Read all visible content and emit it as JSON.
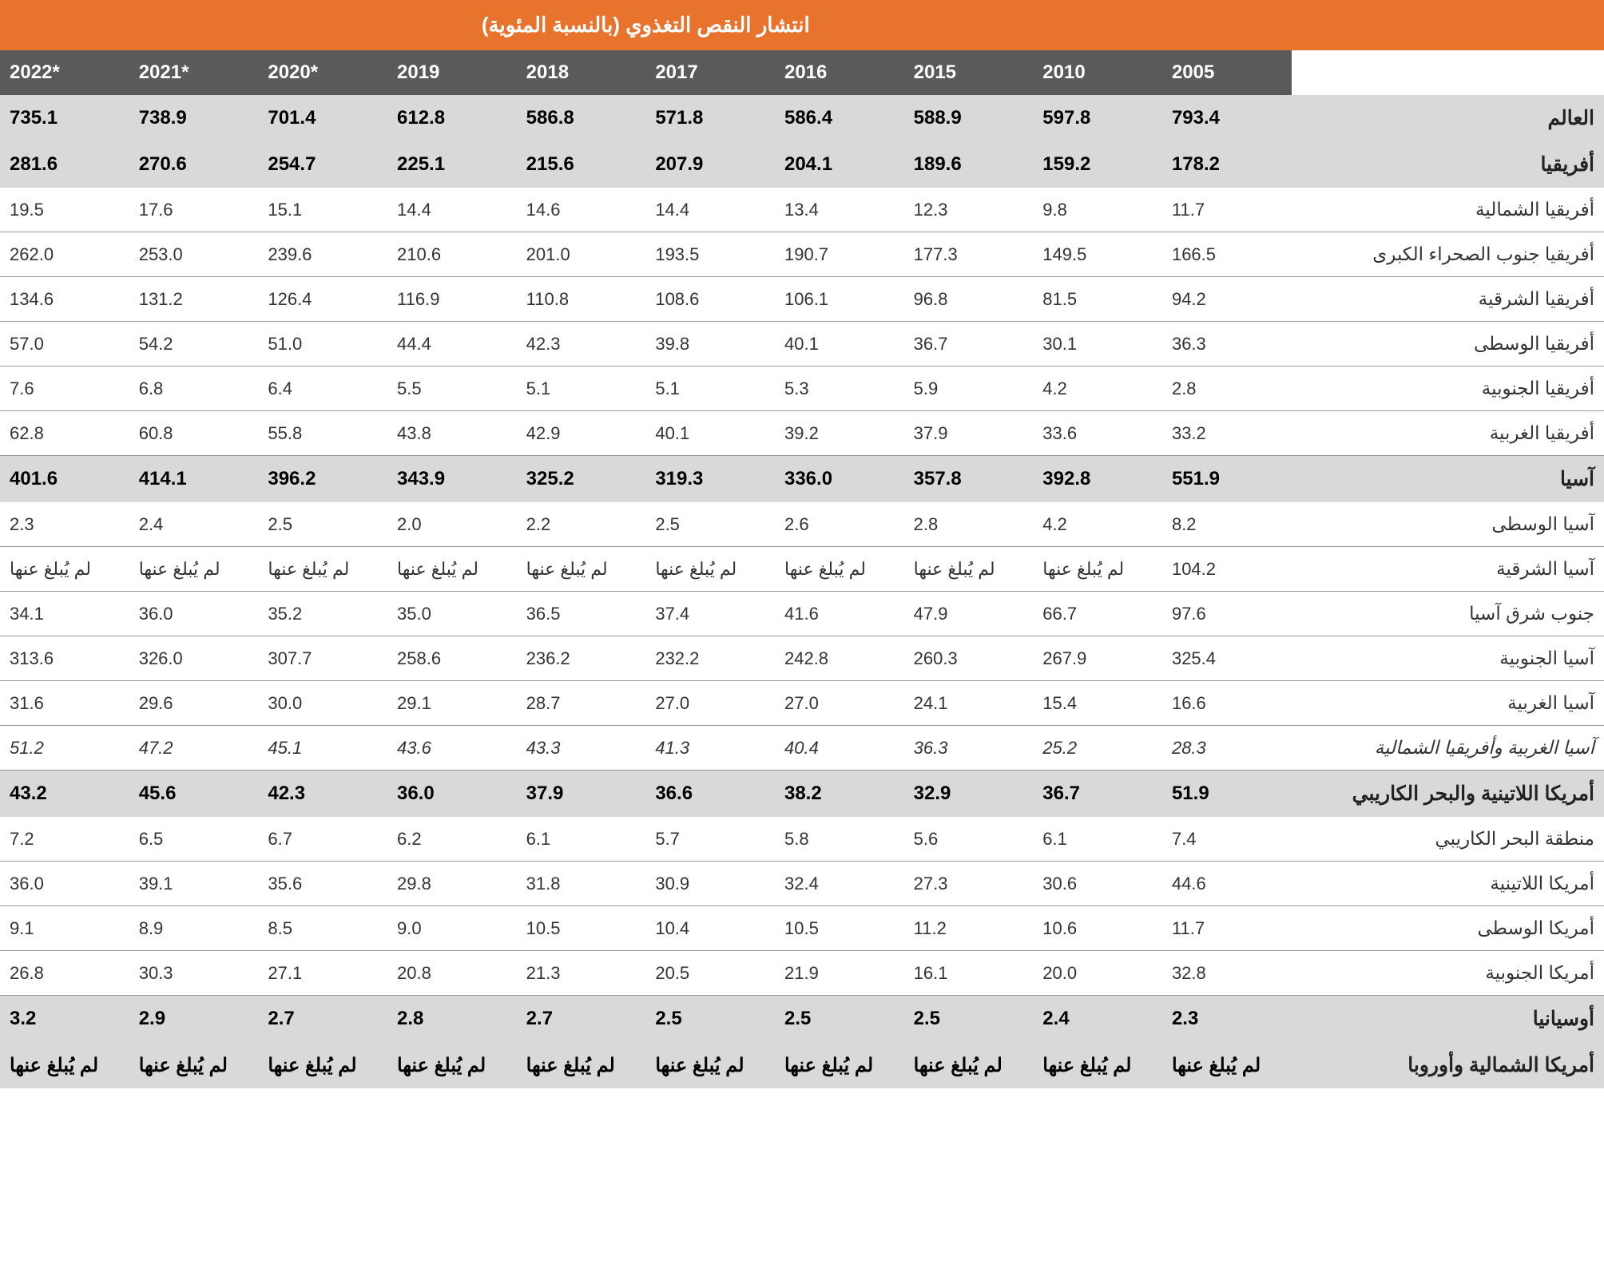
{
  "title": "انتشار النقص التغذوي (بالنسبة المئوية)",
  "columns": [
    "2005",
    "2010",
    "2015",
    "2016",
    "2017",
    "2018",
    "2019",
    "2020*",
    "2021*",
    "2022*"
  ],
  "rows": [
    {
      "label": "العالم",
      "type": "bold",
      "values": [
        "793.4",
        "597.8",
        "588.9",
        "586.4",
        "571.8",
        "586.8",
        "612.8",
        "701.4",
        "738.9",
        "735.1"
      ]
    },
    {
      "label": "أفريقيا",
      "type": "bold",
      "values": [
        "178.2",
        "159.2",
        "189.6",
        "204.1",
        "207.9",
        "215.6",
        "225.1",
        "254.7",
        "270.6",
        "281.6"
      ]
    },
    {
      "label": "أفريقيا الشمالية",
      "type": "normal",
      "values": [
        "11.7",
        "9.8",
        "12.3",
        "13.4",
        "14.4",
        "14.6",
        "14.4",
        "15.1",
        "17.6",
        "19.5"
      ]
    },
    {
      "label": "أفريقيا جنوب الصحراء الكبرى",
      "type": "normal",
      "values": [
        "166.5",
        "149.5",
        "177.3",
        "190.7",
        "193.5",
        "201.0",
        "210.6",
        "239.6",
        "253.0",
        "262.0"
      ]
    },
    {
      "label": "أفريقيا الشرقية",
      "type": "normal",
      "values": [
        "94.2",
        "81.5",
        "96.8",
        "106.1",
        "108.6",
        "110.8",
        "116.9",
        "126.4",
        "131.2",
        "134.6"
      ]
    },
    {
      "label": "أفريقيا الوسطى",
      "type": "normal",
      "values": [
        "36.3",
        "30.1",
        "36.7",
        "40.1",
        "39.8",
        "42.3",
        "44.4",
        "51.0",
        "54.2",
        "57.0"
      ]
    },
    {
      "label": "أفريقيا الجنوبية",
      "type": "normal",
      "values": [
        "2.8",
        "4.2",
        "5.9",
        "5.3",
        "5.1",
        "5.1",
        "5.5",
        "6.4",
        "6.8",
        "7.6"
      ]
    },
    {
      "label": "أفريقيا الغربية",
      "type": "normal",
      "values": [
        "33.2",
        "33.6",
        "37.9",
        "39.2",
        "40.1",
        "42.9",
        "43.8",
        "55.8",
        "60.8",
        "62.8"
      ]
    },
    {
      "label": "آسيا",
      "type": "bold",
      "values": [
        "551.9",
        "392.8",
        "357.8",
        "336.0",
        "319.3",
        "325.2",
        "343.9",
        "396.2",
        "414.1",
        "401.6"
      ]
    },
    {
      "label": "آسيا الوسطى",
      "type": "normal",
      "values": [
        "8.2",
        "4.2",
        "2.8",
        "2.6",
        "2.5",
        "2.2",
        "2.0",
        "2.5",
        "2.4",
        "2.3"
      ]
    },
    {
      "label": "آسيا الشرقية",
      "type": "normal",
      "values": [
        "104.2",
        "لم يُبلغ عنها",
        "لم يُبلغ عنها",
        "لم يُبلغ عنها",
        "لم يُبلغ عنها",
        "لم يُبلغ عنها",
        "لم يُبلغ عنها",
        "لم يُبلغ عنها",
        "لم يُبلغ عنها",
        "لم يُبلغ عنها"
      ]
    },
    {
      "label": "جنوب شرق آسيا",
      "type": "normal",
      "values": [
        "97.6",
        "66.7",
        "47.9",
        "41.6",
        "37.4",
        "36.5",
        "35.0",
        "35.2",
        "36.0",
        "34.1"
      ]
    },
    {
      "label": "آسيا الجنوبية",
      "type": "normal",
      "values": [
        "325.4",
        "267.9",
        "260.3",
        "242.8",
        "232.2",
        "236.2",
        "258.6",
        "307.7",
        "326.0",
        "313.6"
      ]
    },
    {
      "label": "آسيا الغربية",
      "type": "normal",
      "values": [
        "16.6",
        "15.4",
        "24.1",
        "27.0",
        "27.0",
        "28.7",
        "29.1",
        "30.0",
        "29.6",
        "31.6"
      ]
    },
    {
      "label": "آسيا الغربية وأفريقيا الشمالية",
      "type": "italic",
      "values": [
        "28.3",
        "25.2",
        "36.3",
        "40.4",
        "41.3",
        "43.3",
        "43.6",
        "45.1",
        "47.2",
        "51.2"
      ]
    },
    {
      "label": "أمريكا اللاتينية والبحر الكاريبي",
      "type": "bold",
      "values": [
        "51.9",
        "36.7",
        "32.9",
        "38.2",
        "36.6",
        "37.9",
        "36.0",
        "42.3",
        "45.6",
        "43.2"
      ]
    },
    {
      "label": "منطقة البحر الكاريبي",
      "type": "normal",
      "values": [
        "7.4",
        "6.1",
        "5.6",
        "5.8",
        "5.7",
        "6.1",
        "6.2",
        "6.7",
        "6.5",
        "7.2"
      ]
    },
    {
      "label": "أمريكا اللاتينية",
      "type": "normal",
      "values": [
        "44.6",
        "30.6",
        "27.3",
        "32.4",
        "30.9",
        "31.8",
        "29.8",
        "35.6",
        "39.1",
        "36.0"
      ]
    },
    {
      "label": "أمريكا الوسطى",
      "type": "normal",
      "values": [
        "11.7",
        "10.6",
        "11.2",
        "10.5",
        "10.4",
        "10.5",
        "9.0",
        "8.5",
        "8.9",
        "9.1"
      ]
    },
    {
      "label": "أمريكا الجنوبية",
      "type": "normal",
      "values": [
        "32.8",
        "20.0",
        "16.1",
        "21.9",
        "20.5",
        "21.3",
        "20.8",
        "27.1",
        "30.3",
        "26.8"
      ]
    },
    {
      "label": "أوسيانيا",
      "type": "bold",
      "values": [
        "2.3",
        "2.4",
        "2.5",
        "2.5",
        "2.5",
        "2.7",
        "2.8",
        "2.7",
        "2.9",
        "3.2"
      ]
    },
    {
      "label": "أمريكا الشمالية وأوروبا",
      "type": "bold",
      "values": [
        "لم يُبلغ عنها",
        "لم يُبلغ عنها",
        "لم يُبلغ عنها",
        "لم يُبلغ عنها",
        "لم يُبلغ عنها",
        "لم يُبلغ عنها",
        "لم يُبلغ عنها",
        "لم يُبلغ عنها",
        "لم يُبلغ عنها",
        "لم يُبلغ عنها"
      ]
    }
  ],
  "colors": {
    "title_bg": "#e8732c",
    "header_bg": "#5a5a5a",
    "bold_row_bg": "#d9d9d9",
    "border": "#999999"
  }
}
